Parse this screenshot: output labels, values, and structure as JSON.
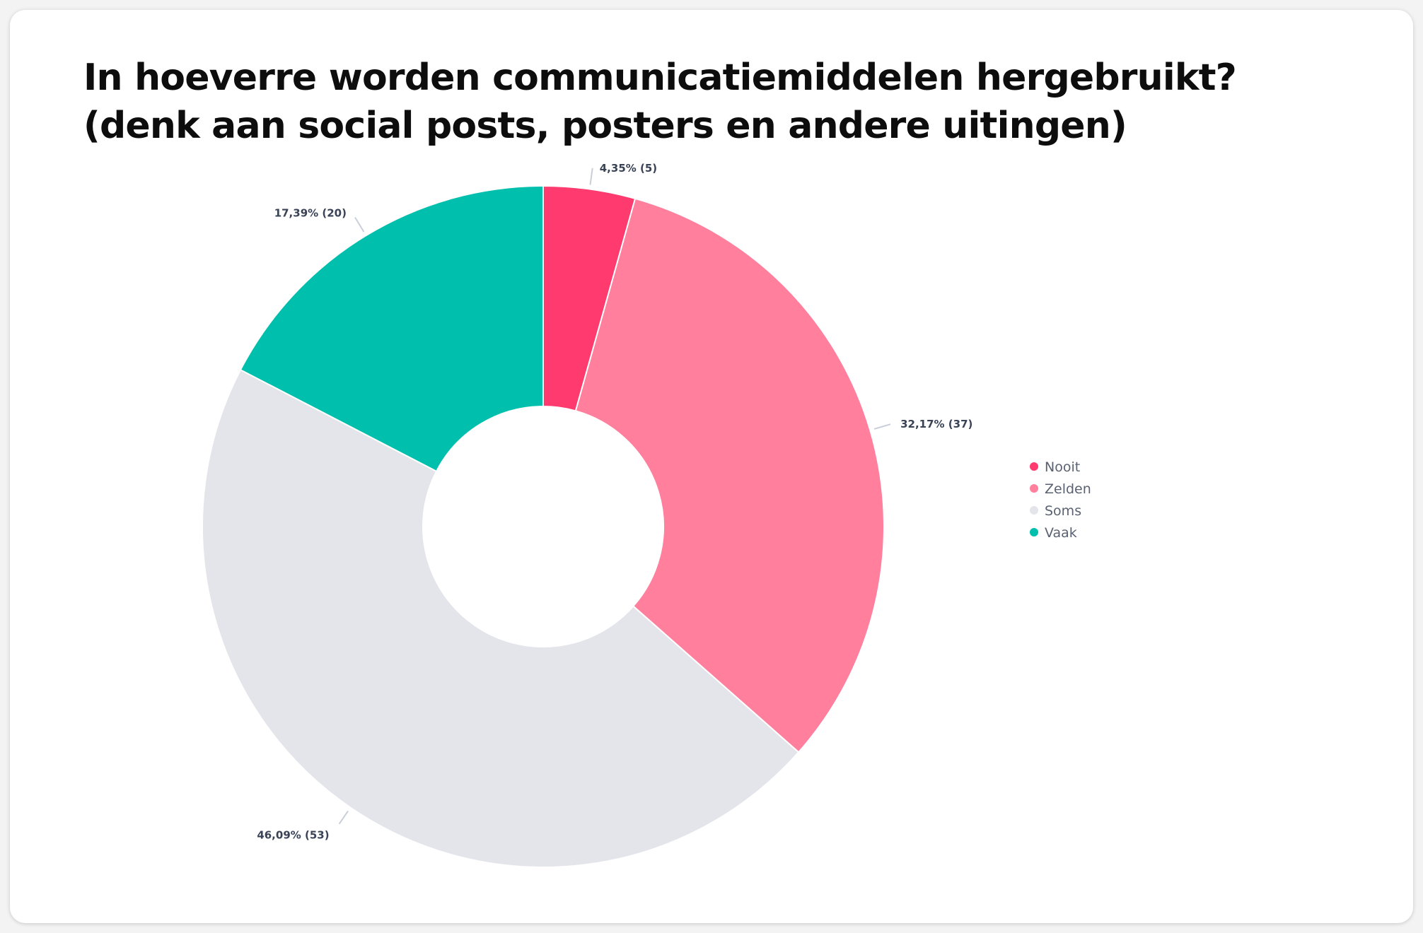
{
  "title_lines": [
    "In hoeverre worden communicatiemiddelen hergebruikt?",
    "(denk aan social posts, posters en andere uitingen)"
  ],
  "chart_data": {
    "type": "pie",
    "donut": true,
    "legend_position": "right",
    "slices": [
      {
        "category": "Nooit",
        "percent": 4.35,
        "count": 5,
        "label": "4,35% (5)",
        "color": "#ff3a6e"
      },
      {
        "category": "Zelden",
        "percent": 32.17,
        "count": 37,
        "label": "32,17% (37)",
        "color": "#ff7f9d"
      },
      {
        "category": "Soms",
        "percent": 46.09,
        "count": 53,
        "label": "46,09% (53)",
        "color": "#e3e5ea"
      },
      {
        "category": "Vaak",
        "percent": 17.39,
        "count": 20,
        "label": "17,39% (20)",
        "color": "#00bfad"
      }
    ]
  }
}
